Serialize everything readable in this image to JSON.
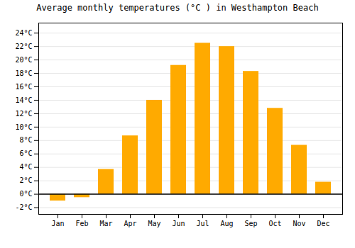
{
  "chart_data": {
    "type": "bar",
    "title": "Average monthly temperatures (°C ) in Westhampton Beach",
    "categories": [
      "Jan",
      "Feb",
      "Mar",
      "Apr",
      "May",
      "Jun",
      "Jul",
      "Aug",
      "Sep",
      "Oct",
      "Nov",
      "Dec"
    ],
    "values": [
      -1.0,
      -0.5,
      3.7,
      8.7,
      14.0,
      19.2,
      22.5,
      22.0,
      18.3,
      12.8,
      7.3,
      1.8
    ],
    "color": "#FFAA00",
    "ylim": [
      -3,
      25.5
    ],
    "yticks": [
      {
        "value": -2,
        "label": "-2°C"
      },
      {
        "value": 0,
        "label": "0°C"
      },
      {
        "value": 2,
        "label": "2°C"
      },
      {
        "value": 4,
        "label": "4°C"
      },
      {
        "value": 6,
        "label": "6°C"
      },
      {
        "value": 8,
        "label": "8°C"
      },
      {
        "value": 10,
        "label": "10°C"
      },
      {
        "value": 12,
        "label": "12°C"
      },
      {
        "value": 14,
        "label": "14°C"
      },
      {
        "value": 16,
        "label": "16°C"
      },
      {
        "value": 18,
        "label": "18°C"
      },
      {
        "value": 20,
        "label": "20°C"
      },
      {
        "value": 22,
        "label": "22°C"
      },
      {
        "value": 24,
        "label": "24°C"
      }
    ],
    "grid": true
  }
}
